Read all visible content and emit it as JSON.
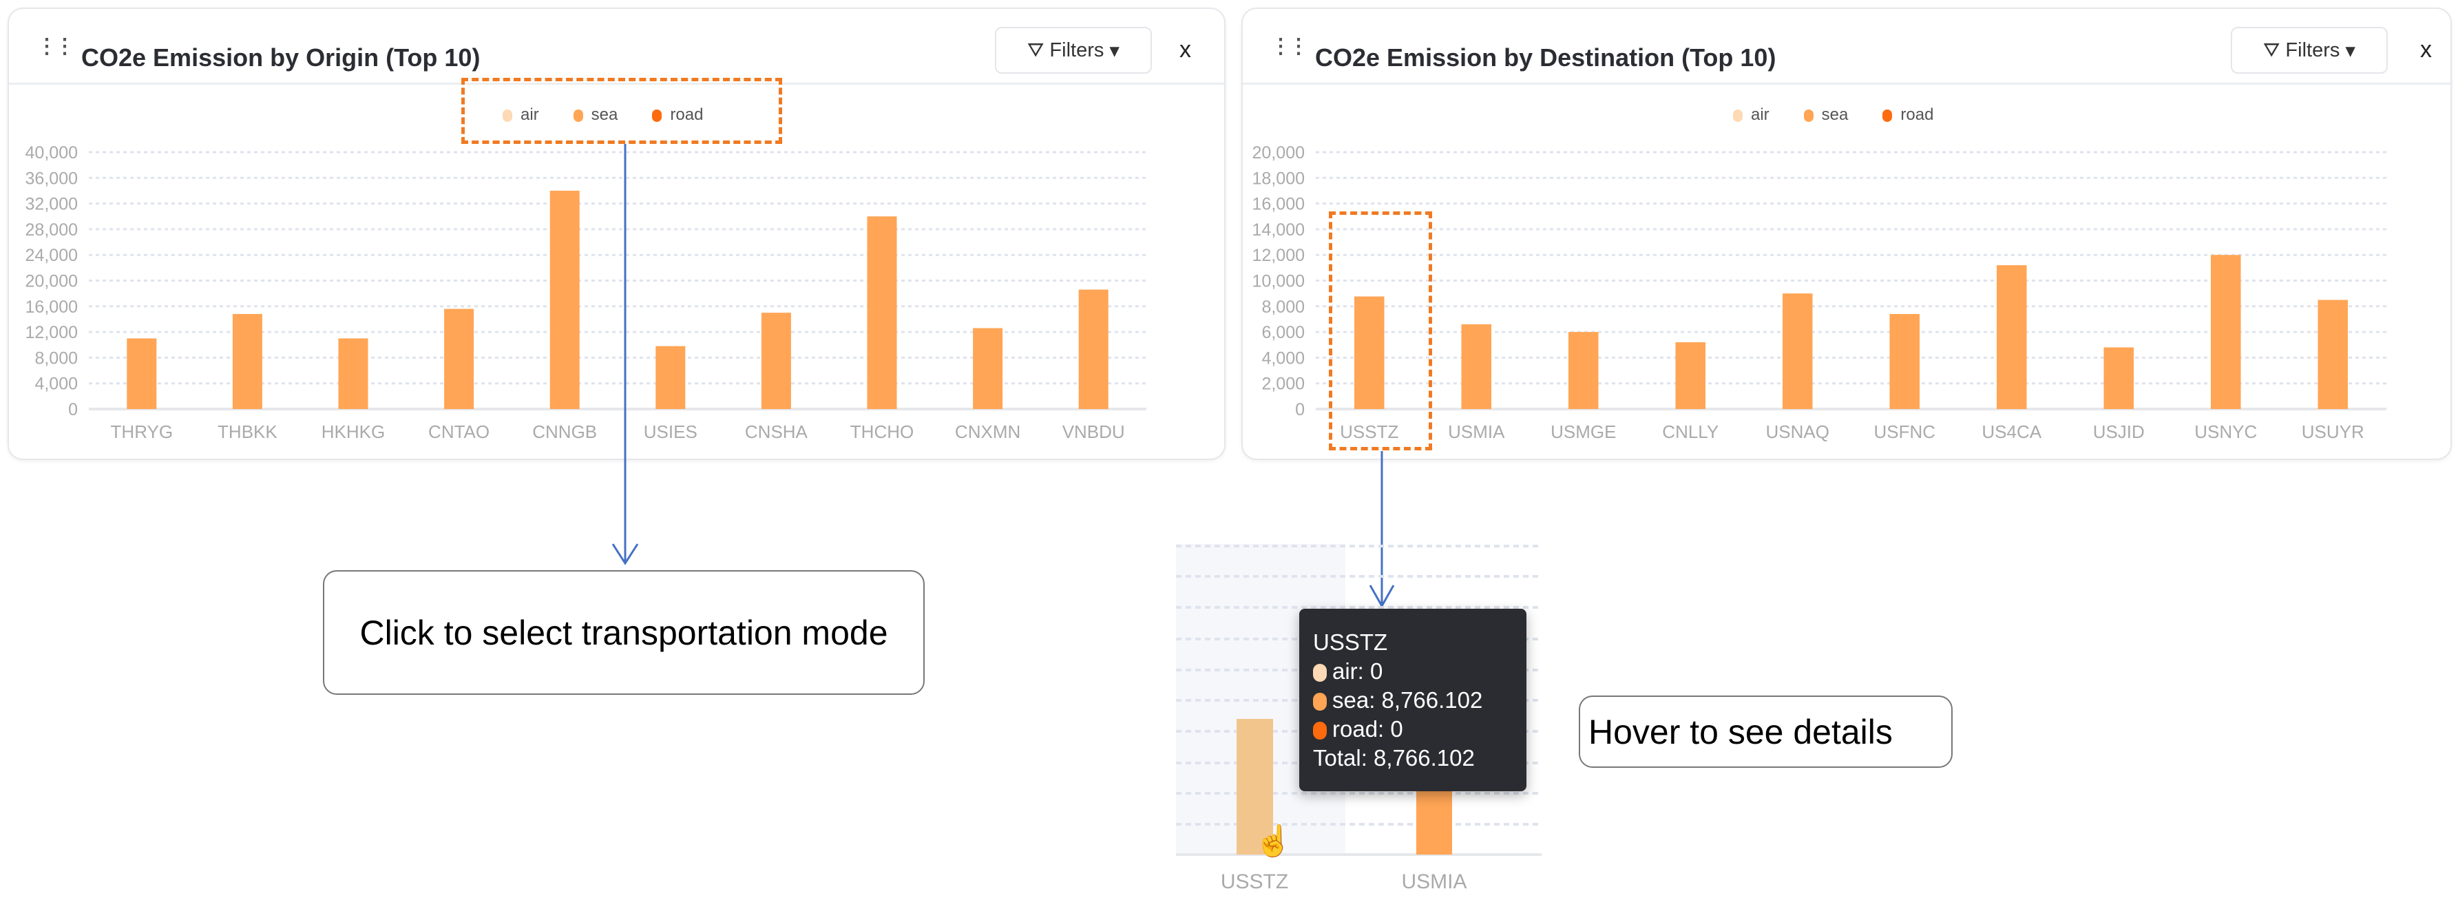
{
  "colors": {
    "air": "#fdd9b5",
    "sea": "#ffa555",
    "road": "#fd6b0e",
    "highlight_bar": "#f2c58d",
    "annotation_dash": "#f07a22",
    "arrow": "#4472c4"
  },
  "panels": [
    {
      "title": "CO2e Emission by Origin (Top 10)",
      "filters_label": "Filters",
      "close_label": "x"
    },
    {
      "title": "CO2e Emission by Destination (Top 10)",
      "filters_label": "Filters",
      "close_label": "x"
    }
  ],
  "legend": [
    "air",
    "sea",
    "road"
  ],
  "chart_data": [
    {
      "type": "bar",
      "title": "CO2e Emission by Origin (Top 10)",
      "stacked": true,
      "categories": [
        "THRYG",
        "THBKK",
        "HKHKG",
        "CNTAO",
        "CNNGB",
        "USIES",
        "CNSHA",
        "THCHO",
        "CNXMN",
        "VNBDU"
      ],
      "series": [
        {
          "name": "air",
          "values": [
            0,
            0,
            0,
            0,
            0,
            0,
            0,
            0,
            0,
            0
          ]
        },
        {
          "name": "sea",
          "values": [
            11000,
            14800,
            11000,
            15600,
            34000,
            9800,
            15000,
            30000,
            12600,
            18600
          ]
        },
        {
          "name": "road",
          "values": [
            0,
            0,
            0,
            0,
            0,
            0,
            0,
            0,
            0,
            0
          ]
        }
      ],
      "ylim": [
        0,
        40000
      ],
      "yticks": [
        "0",
        "4,000",
        "8,000",
        "12,000",
        "16,000",
        "20,000",
        "24,000",
        "28,000",
        "32,000",
        "36,000",
        "40,000"
      ],
      "grid": true,
      "legend": "top-center"
    },
    {
      "type": "bar",
      "title": "CO2e Emission by Destination (Top 10)",
      "stacked": true,
      "categories": [
        "USSTZ",
        "USMIA",
        "USMGE",
        "CNLLY",
        "USNAQ",
        "USFNC",
        "US4CA",
        "USJID",
        "USNYC",
        "USUYR"
      ],
      "series": [
        {
          "name": "air",
          "values": [
            0,
            0,
            0,
            0,
            0,
            0,
            0,
            0,
            0,
            0
          ]
        },
        {
          "name": "sea",
          "values": [
            8766.102,
            6600,
            6000,
            5200,
            9000,
            7400,
            11200,
            4800,
            12000,
            8500
          ]
        },
        {
          "name": "road",
          "values": [
            0,
            0,
            0,
            0,
            0,
            0,
            0,
            0,
            0,
            0
          ]
        }
      ],
      "ylim": [
        0,
        20000
      ],
      "yticks": [
        "0",
        "2,000",
        "4,000",
        "6,000",
        "8,000",
        "10,000",
        "12,000",
        "14,000",
        "16,000",
        "18,000",
        "20,000"
      ],
      "grid": true,
      "legend": "top-center"
    }
  ],
  "annotations": {
    "click": "Click to select transportation mode",
    "hover": "Hover to see details"
  },
  "inset": {
    "labels": [
      "USSTZ",
      "USMIA"
    ],
    "tooltip": {
      "title": "USSTZ",
      "air": "air: 0",
      "sea": "sea: 8,766.102",
      "road": "road: 0",
      "total": "Total: 8,766.102"
    }
  }
}
